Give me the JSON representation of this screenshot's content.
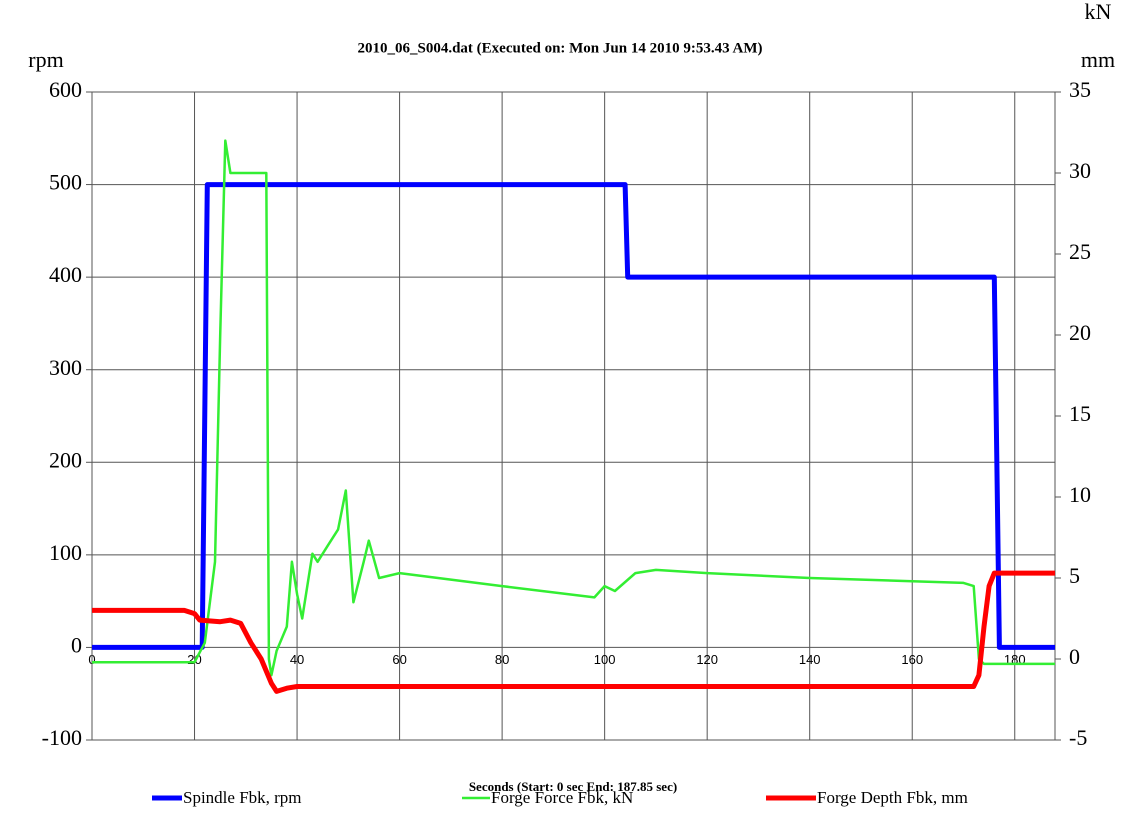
{
  "chart_data": {
    "type": "line",
    "title": "2010_06_S004.dat    (Executed on: Mon Jun 14 2010  9:53.43 AM)",
    "x_label": "Seconds (Start: 0 sec  End: 187.85 sec)",
    "y_label": "rpm",
    "y2_labels": [
      "kN",
      "mm"
    ],
    "xlim": [
      0,
      187.85
    ],
    "xticks": [
      0,
      20,
      40,
      60,
      80,
      100,
      120,
      140,
      160,
      180
    ],
    "ylim": [
      -100,
      600
    ],
    "yticks": [
      -100,
      0,
      100,
      200,
      300,
      400,
      500,
      600
    ],
    "y2lim": [
      -5,
      35
    ],
    "y2ticks": [
      -5,
      0,
      5,
      10,
      15,
      20,
      25,
      30,
      35
    ],
    "grid": true,
    "legend": "bottom",
    "series": [
      {
        "name": "Spindle Fbk, rpm",
        "color": "#0000ff",
        "x": [
          0,
          21.5,
          22.5,
          104,
          104.5,
          176,
          177,
          187.85
        ],
        "values": [
          0,
          0,
          500,
          500,
          400,
          400,
          0,
          0
        ]
      },
      {
        "name": "Forge Force Fbk, kN",
        "color": "#33ee33",
        "axis": "y2",
        "x": [
          0,
          20,
          22,
          24,
          25,
          26,
          27,
          33,
          34,
          34.5,
          35,
          36,
          38,
          39,
          40,
          41,
          43,
          44,
          46,
          48,
          49.5,
          51,
          53,
          54,
          56,
          60,
          80,
          98,
          100,
          102,
          106,
          110,
          120,
          140,
          160,
          170,
          172,
          173,
          174,
          187.85
        ],
        "values": [
          -0.2,
          -0.2,
          1,
          6,
          20,
          32,
          30,
          30,
          30,
          0,
          -1,
          0.5,
          2,
          6,
          4,
          2.5,
          6.5,
          6,
          7,
          8,
          10.4,
          3.5,
          6,
          7.3,
          5,
          5.3,
          4.5,
          3.8,
          4.5,
          4.2,
          5.3,
          5.5,
          5.3,
          5,
          4.8,
          4.7,
          4.5,
          0,
          -0.3,
          -0.3
        ]
      },
      {
        "name": "Forge Depth Fbk, mm",
        "color": "#ff0000",
        "axis": "y2",
        "x": [
          0,
          18,
          20,
          21,
          25,
          27,
          29,
          31,
          33,
          35,
          36,
          38,
          40,
          60,
          170,
          172,
          173,
          174,
          175,
          176,
          187.85
        ],
        "values": [
          3,
          3,
          2.8,
          2.4,
          2.3,
          2.4,
          2.2,
          1,
          0,
          -1.5,
          -2,
          -1.8,
          -1.7,
          -1.7,
          -1.7,
          -1.7,
          -1,
          2,
          4.5,
          5.3,
          5.3
        ]
      }
    ]
  }
}
